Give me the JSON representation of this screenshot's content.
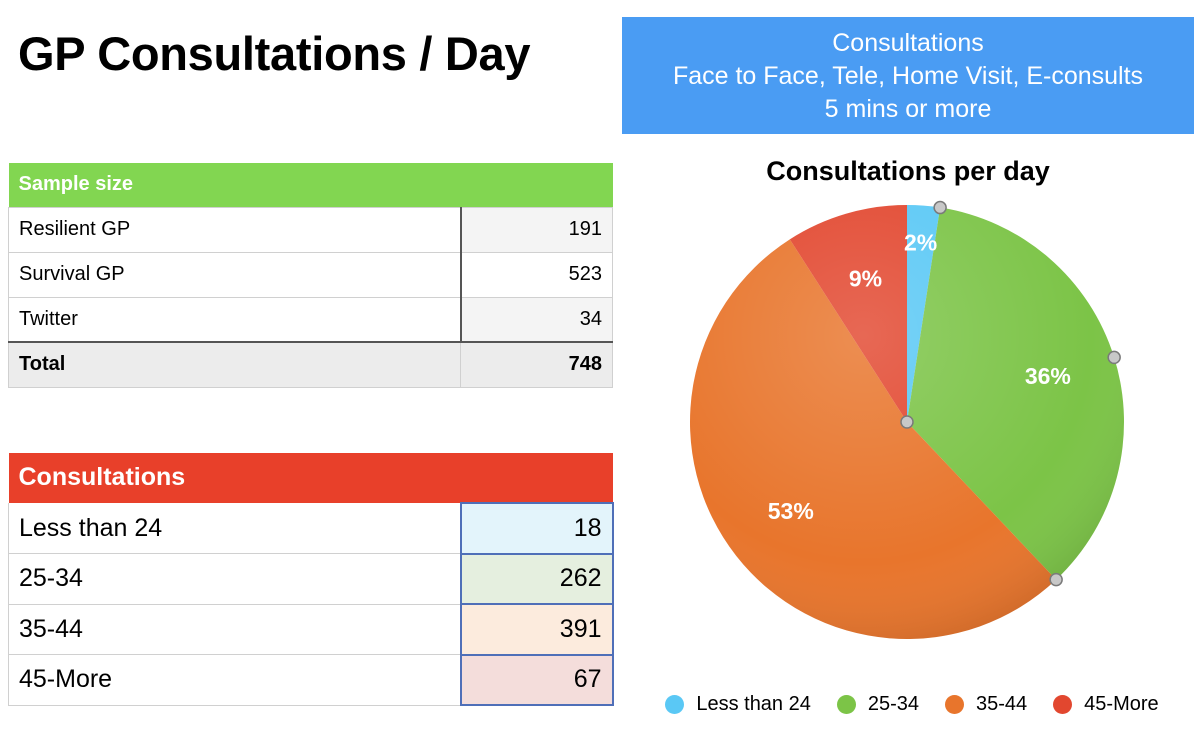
{
  "title": "GP Consultations / Day",
  "info_box": {
    "lines": [
      "Consultations",
      "Face to Face, Tele, Home Visit, E-consults",
      "5 mins or more"
    ]
  },
  "sample_table": {
    "header": "Sample size",
    "rows": [
      {
        "label": "Resilient GP",
        "value": "191"
      },
      {
        "label": "Survival GP",
        "value": "523"
      },
      {
        "label": "Twitter",
        "value": "34"
      }
    ],
    "total": {
      "label": "Total",
      "value": "748"
    }
  },
  "consultations_table": {
    "header": "Consultations",
    "rows": [
      {
        "label": "Less than 24",
        "value": "18",
        "bg": "#e3f4fb"
      },
      {
        "label": "25-34",
        "value": "262",
        "bg": "#e5efdf"
      },
      {
        "label": "35-44",
        "value": "391",
        "bg": "#fcebdd"
      },
      {
        "label": "45-More",
        "value": "67",
        "bg": "#f4dddb"
      }
    ]
  },
  "colors": {
    "title_bar_green": "#82d651",
    "title_bar_red": "#e8402a",
    "info_box_blue": "#4a9cf3"
  },
  "chart_data": {
    "type": "pie",
    "title": "Consultations per day",
    "categories": [
      "Less than 24",
      "25-34",
      "35-44",
      "45-More"
    ],
    "values": [
      18,
      262,
      391,
      67
    ],
    "labels": [
      "2%",
      "36%",
      "53%",
      "9%"
    ],
    "colors": [
      "#5ac8f5",
      "#7cc447",
      "#e8752c",
      "#e2472f"
    ],
    "legend_position": "bottom"
  }
}
